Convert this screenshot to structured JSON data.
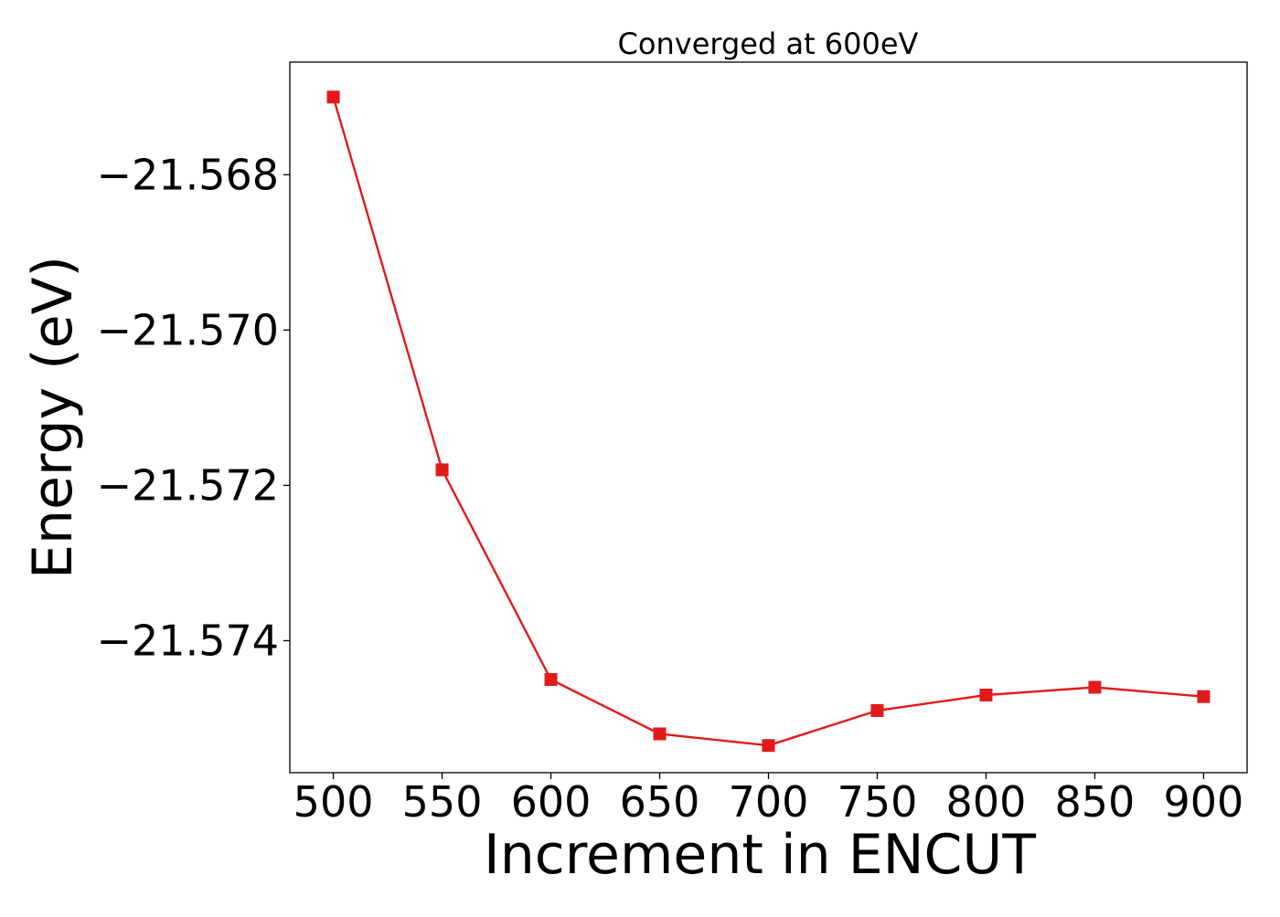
{
  "chart_data": {
    "type": "line",
    "title": "Converged at 600eV",
    "xlabel": "Increment in ENCUT",
    "ylabel": "Energy (eV)",
    "x": [
      500,
      550,
      600,
      650,
      700,
      750,
      800,
      850,
      900
    ],
    "series": [
      {
        "values": [
          -21.567,
          -21.5718,
          -21.5745,
          -21.5752,
          -21.57535,
          -21.5749,
          -21.5747,
          -21.5746,
          -21.57472
        ],
        "color": "#e31a1c",
        "marker": "square"
      }
    ],
    "xticks": [
      500,
      550,
      600,
      650,
      700,
      750,
      800,
      850,
      900
    ],
    "xtick_labels": [
      "500",
      "550",
      "600",
      "650",
      "700",
      "750",
      "800",
      "850",
      "900"
    ],
    "yticks": [
      -21.568,
      -21.57,
      -21.572,
      -21.574
    ],
    "ytick_labels": [
      "−21.568",
      "−21.570",
      "−21.572",
      "−21.574"
    ],
    "xlim": [
      480,
      920
    ],
    "ylim": [
      -21.5757,
      -21.56655
    ],
    "grid": false,
    "legend": false
  }
}
